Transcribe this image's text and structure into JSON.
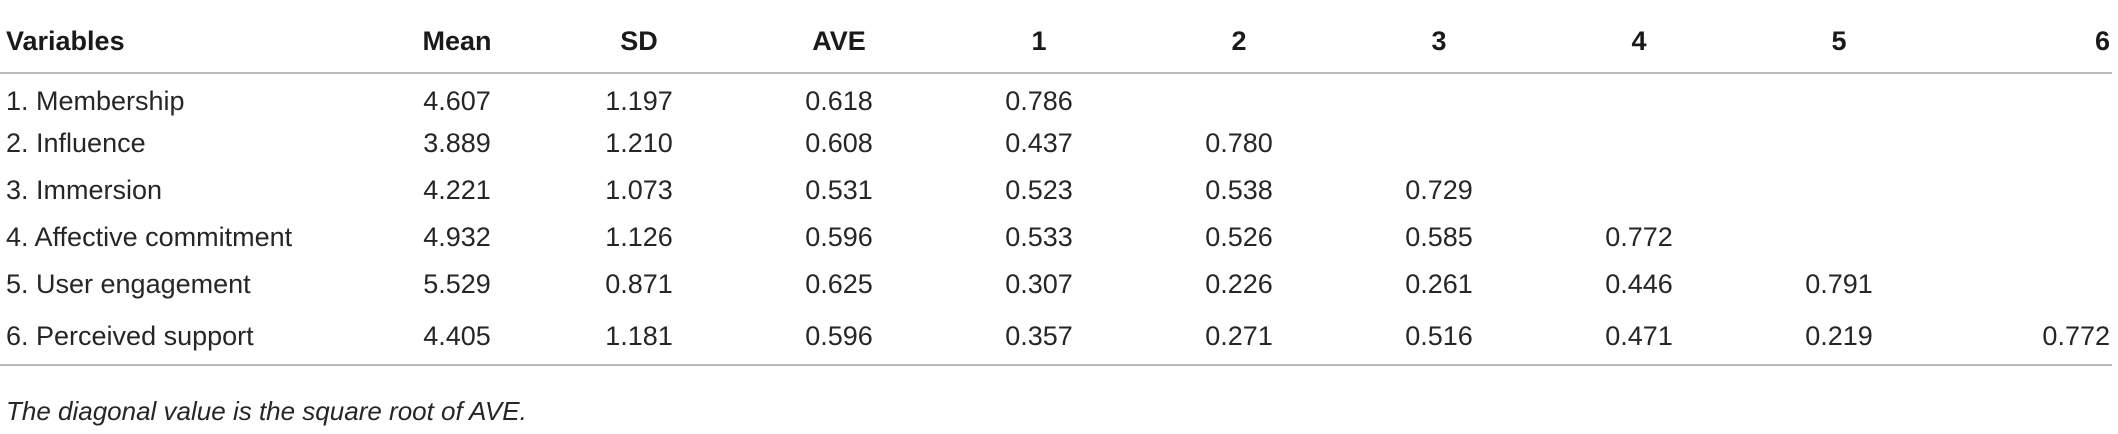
{
  "table": {
    "headers": [
      "Variables",
      "Mean",
      "SD",
      "AVE",
      "1",
      "2",
      "3",
      "4",
      "5",
      "6"
    ],
    "rows": [
      {
        "variable": "1. Membership",
        "mean": "4.607",
        "sd": "1.197",
        "ave": "0.618",
        "c1": "0.786",
        "c2": "",
        "c3": "",
        "c4": "",
        "c5": "",
        "c6": ""
      },
      {
        "variable": "2. Influence",
        "mean": "3.889",
        "sd": "1.210",
        "ave": "0.608",
        "c1": "0.437",
        "c2": "0.780",
        "c3": "",
        "c4": "",
        "c5": "",
        "c6": ""
      },
      {
        "variable": "3. Immersion",
        "mean": "4.221",
        "sd": "1.073",
        "ave": "0.531",
        "c1": "0.523",
        "c2": "0.538",
        "c3": "0.729",
        "c4": "",
        "c5": "",
        "c6": ""
      },
      {
        "variable": "4. Affective commitment",
        "mean": "4.932",
        "sd": "1.126",
        "ave": "0.596",
        "c1": "0.533",
        "c2": "0.526",
        "c3": "0.585",
        "c4": "0.772",
        "c5": "",
        "c6": ""
      },
      {
        "variable": "5. User engagement",
        "mean": "5.529",
        "sd": "0.871",
        "ave": "0.625",
        "c1": "0.307",
        "c2": "0.226",
        "c3": "0.261",
        "c4": "0.446",
        "c5": "0.791",
        "c6": ""
      },
      {
        "variable": "6. Perceived support",
        "mean": "4.405",
        "sd": "1.181",
        "ave": "0.596",
        "c1": "0.357",
        "c2": "0.271",
        "c3": "0.516",
        "c4": "0.471",
        "c5": "0.219",
        "c6": "0.772"
      }
    ]
  },
  "footnote": "The diagonal value is the square root of AVE."
}
